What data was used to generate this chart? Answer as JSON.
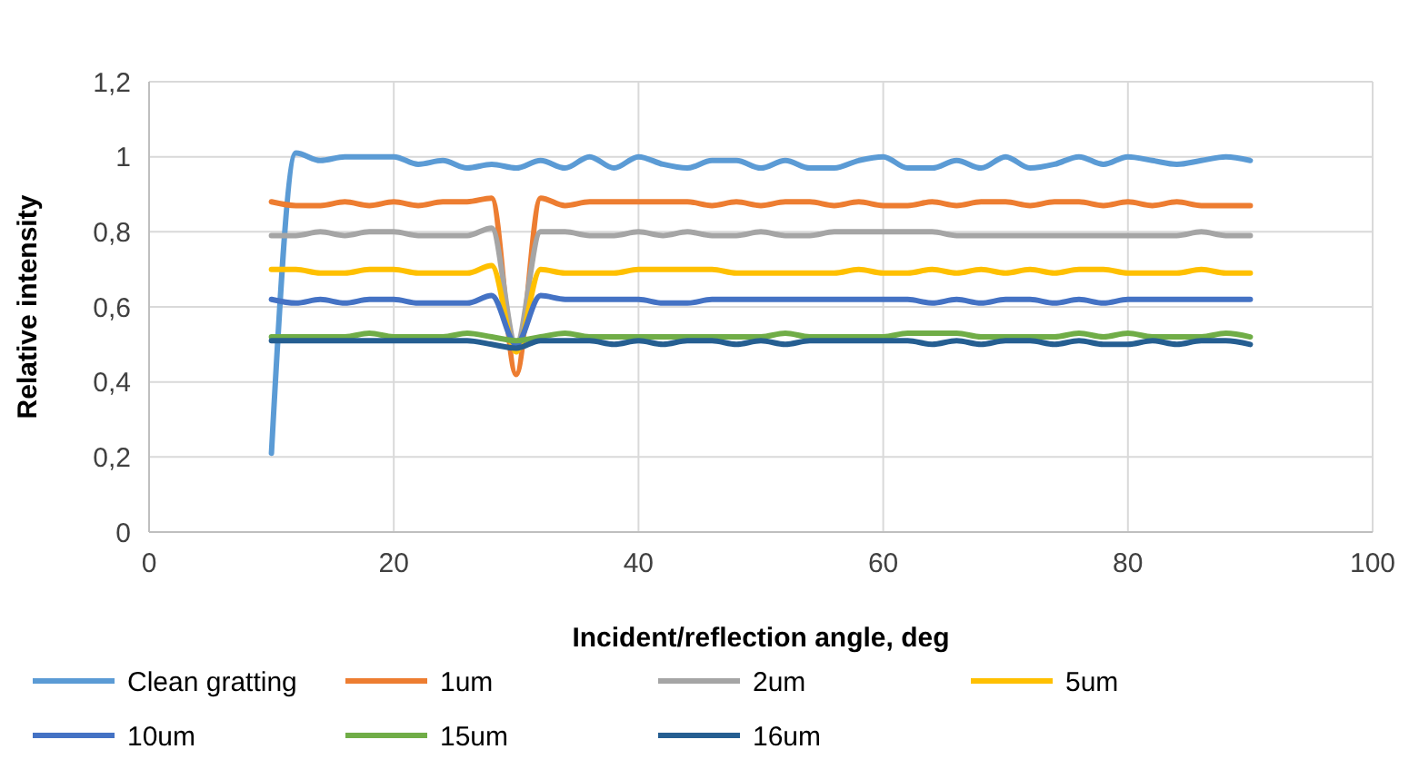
{
  "chart_data": {
    "type": "line",
    "xlabel": "Incident/reflection angle, deg",
    "ylabel": "Relative intensity",
    "x": [
      10,
      12,
      14,
      16,
      18,
      20,
      22,
      24,
      26,
      28,
      30,
      32,
      34,
      36,
      38,
      40,
      42,
      44,
      46,
      48,
      50,
      52,
      54,
      56,
      58,
      60,
      62,
      64,
      66,
      68,
      70,
      72,
      74,
      76,
      78,
      80,
      82,
      84,
      86,
      88,
      90
    ],
    "series": [
      {
        "name": "Clean gratting",
        "color": "#5b9bd5",
        "values": [
          0.21,
          1.01,
          0.99,
          1.0,
          1.0,
          1.0,
          0.98,
          0.99,
          0.97,
          0.98,
          0.97,
          0.99,
          0.97,
          1.0,
          0.97,
          1.0,
          0.98,
          0.97,
          0.99,
          0.99,
          0.97,
          0.99,
          0.97,
          0.97,
          0.99,
          1.0,
          0.97,
          0.97,
          0.99,
          0.97,
          1.0,
          0.97,
          0.98,
          1.0,
          0.98,
          1.0,
          0.99,
          0.98,
          0.99,
          1.0,
          0.99
        ]
      },
      {
        "name": "1um",
        "color": "#ed7d31",
        "values": [
          0.88,
          0.87,
          0.87,
          0.88,
          0.87,
          0.88,
          0.87,
          0.88,
          0.88,
          0.89,
          0.42,
          0.89,
          0.87,
          0.88,
          0.88,
          0.88,
          0.88,
          0.88,
          0.87,
          0.88,
          0.87,
          0.88,
          0.88,
          0.87,
          0.88,
          0.87,
          0.87,
          0.88,
          0.87,
          0.88,
          0.88,
          0.87,
          0.88,
          0.88,
          0.87,
          0.88,
          0.87,
          0.88,
          0.87,
          0.87,
          0.87
        ]
      },
      {
        "name": "2um",
        "color": "#a5a5a5",
        "values": [
          0.79,
          0.79,
          0.8,
          0.79,
          0.8,
          0.8,
          0.79,
          0.79,
          0.79,
          0.81,
          0.5,
          0.8,
          0.8,
          0.79,
          0.79,
          0.8,
          0.79,
          0.8,
          0.79,
          0.79,
          0.8,
          0.79,
          0.79,
          0.8,
          0.8,
          0.8,
          0.8,
          0.8,
          0.79,
          0.79,
          0.79,
          0.79,
          0.79,
          0.79,
          0.79,
          0.79,
          0.79,
          0.79,
          0.8,
          0.79,
          0.79
        ]
      },
      {
        "name": "5um",
        "color": "#ffc000",
        "values": [
          0.7,
          0.7,
          0.69,
          0.69,
          0.7,
          0.7,
          0.69,
          0.69,
          0.69,
          0.71,
          0.48,
          0.7,
          0.69,
          0.69,
          0.69,
          0.7,
          0.7,
          0.7,
          0.7,
          0.69,
          0.69,
          0.69,
          0.69,
          0.69,
          0.7,
          0.69,
          0.69,
          0.7,
          0.69,
          0.7,
          0.69,
          0.7,
          0.69,
          0.7,
          0.7,
          0.69,
          0.69,
          0.69,
          0.7,
          0.69,
          0.69
        ]
      },
      {
        "name": "10um",
        "color": "#4472c4",
        "values": [
          0.62,
          0.61,
          0.62,
          0.61,
          0.62,
          0.62,
          0.61,
          0.61,
          0.61,
          0.63,
          0.5,
          0.63,
          0.62,
          0.62,
          0.62,
          0.62,
          0.61,
          0.61,
          0.62,
          0.62,
          0.62,
          0.62,
          0.62,
          0.62,
          0.62,
          0.62,
          0.62,
          0.61,
          0.62,
          0.61,
          0.62,
          0.62,
          0.61,
          0.62,
          0.61,
          0.62,
          0.62,
          0.62,
          0.62,
          0.62,
          0.62
        ]
      },
      {
        "name": "15um",
        "color": "#70ad47",
        "values": [
          0.52,
          0.52,
          0.52,
          0.52,
          0.53,
          0.52,
          0.52,
          0.52,
          0.53,
          0.52,
          0.51,
          0.52,
          0.53,
          0.52,
          0.52,
          0.52,
          0.52,
          0.52,
          0.52,
          0.52,
          0.52,
          0.53,
          0.52,
          0.52,
          0.52,
          0.52,
          0.53,
          0.53,
          0.53,
          0.52,
          0.52,
          0.52,
          0.52,
          0.53,
          0.52,
          0.53,
          0.52,
          0.52,
          0.52,
          0.53,
          0.52
        ]
      },
      {
        "name": "16um",
        "color": "#255e91",
        "values": [
          0.51,
          0.51,
          0.51,
          0.51,
          0.51,
          0.51,
          0.51,
          0.51,
          0.51,
          0.5,
          0.49,
          0.51,
          0.51,
          0.51,
          0.5,
          0.51,
          0.5,
          0.51,
          0.51,
          0.5,
          0.51,
          0.5,
          0.51,
          0.51,
          0.51,
          0.51,
          0.51,
          0.5,
          0.51,
          0.5,
          0.51,
          0.51,
          0.5,
          0.51,
          0.5,
          0.5,
          0.51,
          0.5,
          0.51,
          0.51,
          0.5
        ]
      }
    ],
    "xlim": [
      0,
      100
    ],
    "xticks": [
      0,
      20,
      40,
      60,
      80,
      100
    ],
    "ylim": [
      0,
      1.2
    ],
    "yticks": [
      0,
      {
        "value": 0.2,
        "label": "0,2"
      },
      {
        "value": 0.4,
        "label": "0,4"
      },
      {
        "value": 0.6,
        "label": "0,6"
      },
      {
        "value": 0.8,
        "label": "0,8"
      },
      1,
      {
        "value": 1.2,
        "label": "1,2"
      }
    ],
    "grid": true,
    "legend": "bottom",
    "marker": "none",
    "line_style": "solid"
  }
}
